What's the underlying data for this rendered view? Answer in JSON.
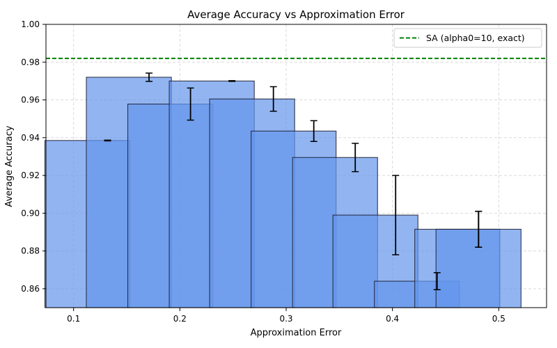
{
  "chart_data": {
    "type": "bar",
    "title": "Average Accuracy vs Approximation Error",
    "xlabel": "Approximation Error",
    "ylabel": "Average Accuracy",
    "xlim": [
      0.074,
      0.545
    ],
    "ylim": [
      0.85,
      1.0
    ],
    "xticks": [
      "0.1",
      "0.2",
      "0.3",
      "0.4",
      "0.5"
    ],
    "yticks": [
      "0.86",
      "0.88",
      "0.90",
      "0.92",
      "0.94",
      "0.96",
      "0.98",
      "1.00"
    ],
    "grid": true,
    "bar_width": 0.08,
    "series": [
      {
        "x": [
          0.113,
          0.152,
          0.191,
          0.23,
          0.268,
          0.307,
          0.346,
          0.384,
          0.423,
          0.461,
          0.481
        ],
        "values": [
          0.9385,
          0.972,
          0.9578,
          0.97,
          0.9605,
          0.9435,
          0.9295,
          0.899,
          0.864,
          0.8915,
          0.8915
        ],
        "errors": [
          0.0002,
          0.0022,
          0.0085,
          0.0002,
          0.0065,
          0.0055,
          0.0075,
          0.021,
          0.0045,
          0.0095,
          0.0095
        ],
        "error_x": [
          0.132,
          0.171,
          0.21,
          0.249,
          0.288,
          0.326,
          0.365,
          0.403,
          0.442,
          0.481,
          0.481
        ]
      }
    ],
    "reference_line": {
      "label": "SA (alpha0=10, exact)",
      "value": 0.982,
      "color": "#008000",
      "style": "dashed"
    },
    "legend_position": "top-right",
    "colors": {
      "bar_fill": "#6495ED",
      "bar_edge": "#1a1a2e",
      "error_bar": "#000000",
      "grid": "#d9d9d9"
    }
  }
}
